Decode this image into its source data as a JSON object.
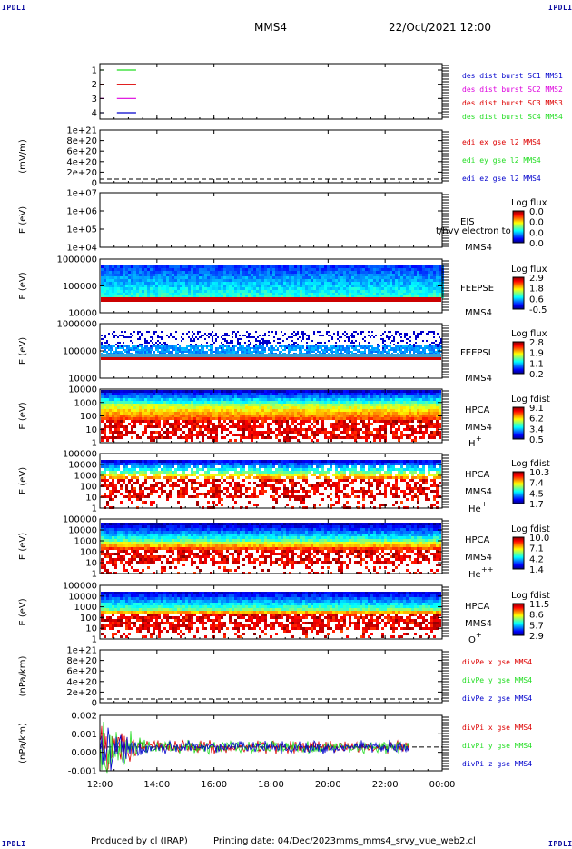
{
  "header": {
    "corner_label": "IPDLI",
    "spacecraft": "MMS4",
    "datetime": "22/Oct/2021 12:00"
  },
  "footer": {
    "produced_by": "Produced by cl (IRAP)",
    "printing_date": "Printing date: 04/Dec/2023",
    "script": "mms_mms4_srvy_vue_web2.cl"
  },
  "x_axis": {
    "ticks": [
      "12:00",
      "14:00",
      "16:00",
      "18:00",
      "20:00",
      "22:00",
      "00:00"
    ]
  },
  "colors": {
    "red": "#dd0000",
    "green": "#22dd22",
    "blue": "#0000cc",
    "magenta": "#dd00dd"
  },
  "chart_data": [
    {
      "id": "burst",
      "type": "line",
      "yticks": [
        "1",
        "2",
        "3",
        "4"
      ],
      "legend": [
        {
          "text": "des dist burst SC1 MMS1",
          "color": "#0000cc"
        },
        {
          "text": "des dist burst SC2 MMS2",
          "color": "#dd00dd"
        },
        {
          "text": "des dist burst SC3 MMS3",
          "color": "#dd0000"
        },
        {
          "text": "des dist burst SC4 MMS4",
          "color": "#22dd22"
        }
      ],
      "series": [
        {
          "y": 4,
          "color": "#22dd22",
          "segments": [
            [
              0.0,
              0.1
            ],
            [
              0.4,
              0.85
            ]
          ]
        },
        {
          "y": 3,
          "color": "#dd0000",
          "segments": [
            [
              0.0,
              0.1
            ],
            [
              0.4,
              0.85
            ]
          ]
        },
        {
          "y": 2,
          "color": "#dd00dd",
          "segments": [
            [
              0.0,
              0.1
            ],
            [
              0.4,
              0.85
            ]
          ]
        },
        {
          "y": 1,
          "color": "#0000cc",
          "segments": [
            [
              0.0,
              0.1
            ],
            [
              0.4,
              0.85
            ]
          ]
        }
      ]
    },
    {
      "id": "edi",
      "type": "line",
      "ylabel": "(mV/m)",
      "yticks": [
        "1e+21",
        "8e+20",
        "6e+20",
        "4e+20",
        "2e+20",
        "0"
      ],
      "legend": [
        {
          "text": "edi ex gse l2 MMS4",
          "color": "#dd0000"
        },
        {
          "text": "edi ey gse l2 MMS4",
          "color": "#22dd22"
        },
        {
          "text": "edi ez gse l2 MMS4",
          "color": "#0000cc"
        }
      ]
    },
    {
      "id": "eis",
      "type": "heatmap",
      "ylabel": "E (eV)",
      "yticks": [
        "1e+07",
        "1e+06",
        "1e+05",
        "1e+04"
      ],
      "label_top": "EIS",
      "label_bottom": "MMS4",
      "overlay_text": "t/hvy electron to",
      "colorbar": {
        "title": "Log flux",
        "ticks": [
          "0.0",
          "0.0",
          "0.0",
          "0.0"
        ]
      }
    },
    {
      "id": "feepse",
      "type": "heatmap",
      "ylabel": "E (eV)",
      "yticks": [
        "1000000",
        "100000",
        "10000"
      ],
      "label_top": "FEEPSE",
      "label_bottom": "MMS4",
      "colorbar": {
        "title": "Log flux",
        "ticks": [
          "2.9",
          "1.8",
          "0.6",
          "-0.5"
        ]
      }
    },
    {
      "id": "feepsi",
      "type": "heatmap",
      "ylabel": "E (eV)",
      "yticks": [
        "1000000",
        "100000",
        "10000"
      ],
      "label_top": "FEEPSI",
      "label_bottom": "MMS4",
      "colorbar": {
        "title": "Log flux",
        "ticks": [
          "2.8",
          "1.9",
          "1.1",
          "0.2"
        ]
      }
    },
    {
      "id": "hpca_h",
      "type": "heatmap",
      "ylabel": "E (eV)",
      "yticks": [
        "10000",
        "1000",
        "100",
        "10",
        "1"
      ],
      "label_top": "HPCA",
      "label_mid": "MMS4",
      "species": "H",
      "charge": "+",
      "colorbar": {
        "title": "Log fdist",
        "ticks": [
          "9.1",
          "6.2",
          "3.4",
          "0.5"
        ]
      }
    },
    {
      "id": "hpca_he1",
      "type": "heatmap",
      "ylabel": "E (eV)",
      "yticks": [
        "100000",
        "10000",
        "1000",
        "100",
        "10",
        "1"
      ],
      "label_top": "HPCA",
      "label_mid": "MMS4",
      "species": "He",
      "charge": "+",
      "colorbar": {
        "title": "Log fdist",
        "ticks": [
          "10.3",
          "7.4",
          "4.5",
          "1.7"
        ]
      }
    },
    {
      "id": "hpca_he2",
      "type": "heatmap",
      "ylabel": "E (eV)",
      "yticks": [
        "100000",
        "10000",
        "1000",
        "100",
        "10",
        "1"
      ],
      "label_top": "HPCA",
      "label_mid": "MMS4",
      "species": "He",
      "charge": "++",
      "colorbar": {
        "title": "Log fdist",
        "ticks": [
          "10.0",
          "7.1",
          "4.2",
          "1.4"
        ]
      }
    },
    {
      "id": "hpca_o",
      "type": "heatmap",
      "ylabel": "E (eV)",
      "yticks": [
        "100000",
        "10000",
        "1000",
        "100",
        "10",
        "1"
      ],
      "label_top": "HPCA",
      "label_mid": "MMS4",
      "species": "O",
      "charge": "+",
      "colorbar": {
        "title": "Log fdist",
        "ticks": [
          "11.5",
          "8.6",
          "5.7",
          "2.9"
        ]
      }
    },
    {
      "id": "divpe",
      "type": "line",
      "ylabel": "(nPa/km)",
      "yticks": [
        "1e+21",
        "8e+20",
        "6e+20",
        "4e+20",
        "2e+20",
        "0"
      ],
      "legend": [
        {
          "text": "divPe x gse MMS4",
          "color": "#dd0000"
        },
        {
          "text": "divPe y gse MMS4",
          "color": "#22dd22"
        },
        {
          "text": "divPe z gse MMS4",
          "color": "#0000cc"
        }
      ]
    },
    {
      "id": "divpi",
      "type": "line",
      "ylabel": "(nPa/km)",
      "yticks": [
        "0.002",
        "0.001",
        "0.000",
        "-0.001"
      ],
      "ylim": [
        -0.0015,
        0.002
      ],
      "legend": [
        {
          "text": "divPi x gse MMS4",
          "color": "#dd0000"
        },
        {
          "text": "divPi y gse MMS4",
          "color": "#22dd22"
        },
        {
          "text": "divPi z gse MMS4",
          "color": "#0000cc"
        }
      ]
    }
  ]
}
